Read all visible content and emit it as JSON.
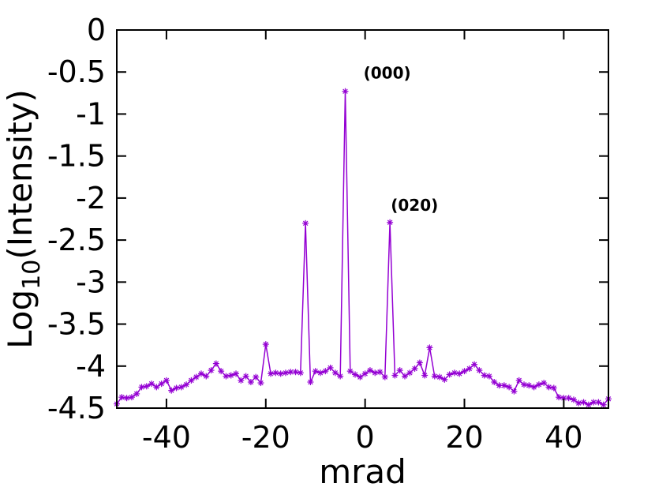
{
  "chart_data": {
    "type": "line",
    "title": "",
    "xlabel": "mrad",
    "ylabel_main": "Log",
    "ylabel_sub": "10",
    "ylabel_rest": "(Intensity)",
    "xlim": [
      -50,
      49
    ],
    "ylim": [
      -4.5,
      0
    ],
    "xticks": [
      -40,
      -20,
      0,
      20,
      40
    ],
    "xtick_labels": [
      "-40",
      "-20",
      "0",
      "20",
      "40"
    ],
    "yticks": [
      0,
      -0.5,
      -1,
      -1.5,
      -2,
      -2.5,
      -3,
      -3.5,
      -4,
      -4.5
    ],
    "ytick_labels": [
      "0",
      "-0.5",
      "-1",
      "-1.5",
      "-2",
      "-2.5",
      "-3",
      "-3.5",
      "-4",
      "-4.5"
    ],
    "grid": false,
    "series_color": "#9400d3",
    "marker": "plus-cross",
    "series": [
      {
        "x": [
          -50,
          -49,
          -48,
          -47,
          -46,
          -45,
          -44,
          -43,
          -42,
          -41,
          -40,
          -39,
          -38,
          -37,
          -36,
          -35,
          -34,
          -33,
          -32,
          -31,
          -30,
          -29,
          -28,
          -27,
          -26,
          -25,
          -24,
          -23,
          -22,
          -21,
          -20,
          -19,
          -18,
          -17,
          -16,
          -15,
          -14,
          -13,
          -12,
          -11,
          -10,
          -9,
          -8,
          -7,
          -6,
          -5,
          -4,
          -3,
          -2,
          -1,
          0,
          1,
          2,
          3,
          4,
          5,
          6,
          7,
          8,
          9,
          10,
          11,
          12,
          13,
          14,
          15,
          16,
          17,
          18,
          19,
          20,
          21,
          22,
          23,
          24,
          25,
          26,
          27,
          28,
          29,
          30,
          31,
          32,
          33,
          34,
          35,
          36,
          37,
          38,
          39,
          40,
          41,
          42,
          43,
          44,
          45,
          46,
          47,
          48,
          49
        ],
        "y": [
          -4.45,
          -4.37,
          -4.38,
          -4.37,
          -4.33,
          -4.25,
          -4.24,
          -4.21,
          -4.25,
          -4.21,
          -4.17,
          -4.29,
          -4.26,
          -4.25,
          -4.22,
          -4.17,
          -4.13,
          -4.09,
          -4.12,
          -4.05,
          -3.97,
          -4.06,
          -4.12,
          -4.11,
          -4.09,
          -4.17,
          -4.12,
          -4.19,
          -4.13,
          -4.2,
          -3.74,
          -4.09,
          -4.08,
          -4.09,
          -4.08,
          -4.07,
          -4.07,
          -4.08,
          -2.3,
          -4.19,
          -4.06,
          -4.08,
          -4.06,
          -4.02,
          -4.08,
          -4.12,
          -0.73,
          -4.06,
          -4.1,
          -4.13,
          -4.09,
          -4.05,
          -4.08,
          -4.07,
          -4.13,
          -2.29,
          -4.11,
          -4.05,
          -4.12,
          -4.08,
          -4.03,
          -3.96,
          -4.11,
          -3.78,
          -4.12,
          -4.13,
          -4.16,
          -4.1,
          -4.08,
          -4.09,
          -4.06,
          -4.03,
          -3.98,
          -4.05,
          -4.11,
          -4.12,
          -4.19,
          -4.23,
          -4.23,
          -4.25,
          -4.3,
          -4.17,
          -4.22,
          -4.23,
          -4.25,
          -4.22,
          -4.2,
          -4.25,
          -4.26,
          -4.37,
          -4.38,
          -4.38,
          -4.4,
          -4.44,
          -4.43,
          -4.46,
          -4.43,
          -4.43,
          -4.46,
          -4.39
        ]
      }
    ],
    "annotations": [
      {
        "text": "(000)",
        "x": 0,
        "y": -0.58
      },
      {
        "text": "(020)",
        "x": 5.5,
        "y": -2.15
      }
    ]
  }
}
